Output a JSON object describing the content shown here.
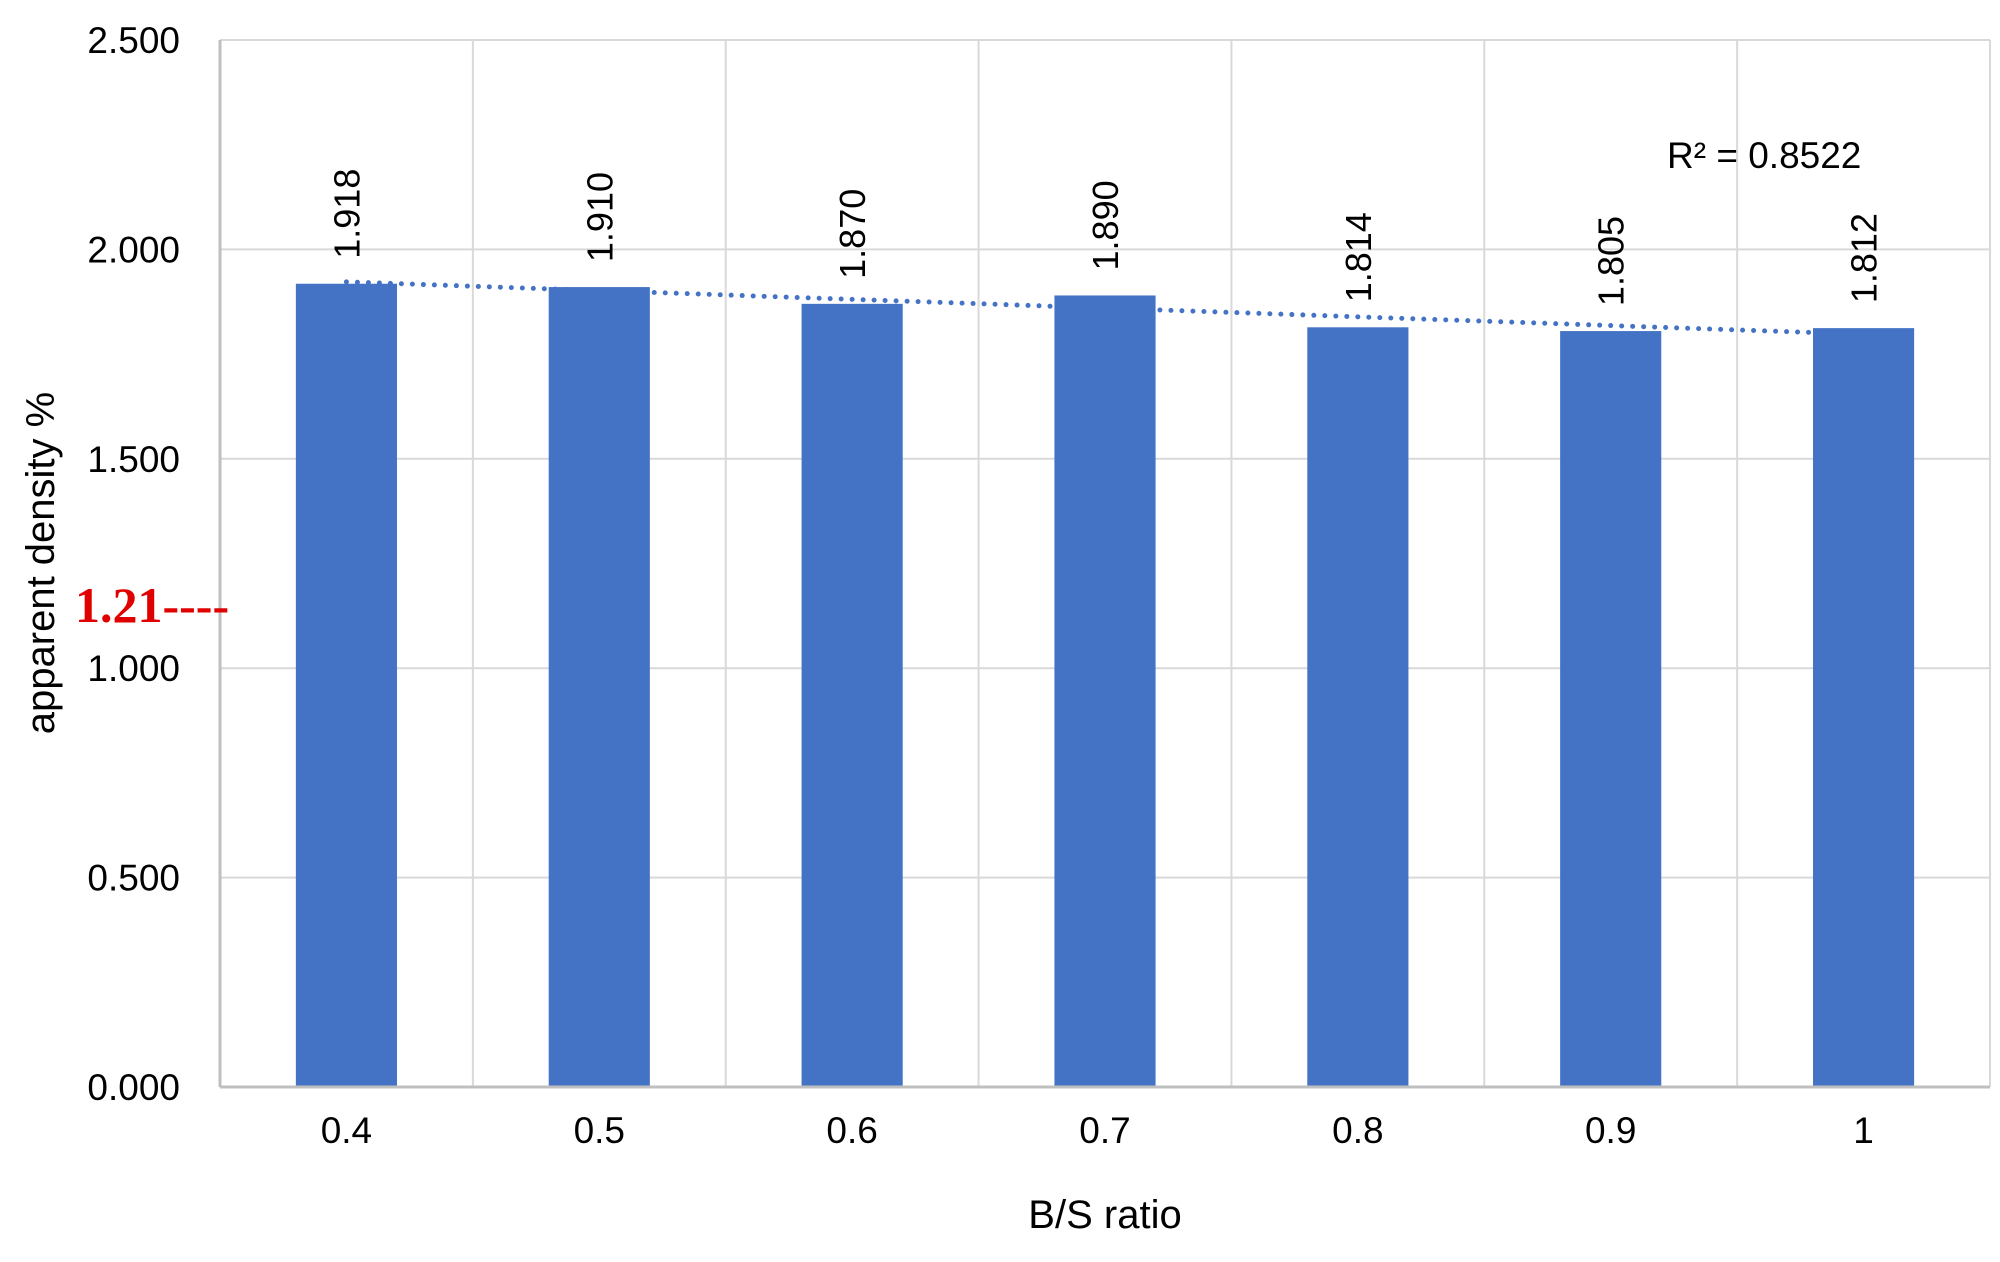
{
  "chart_data": {
    "type": "bar",
    "categories": [
      "0.4",
      "0.5",
      "0.6",
      "0.7",
      "0.8",
      "0.9",
      "1"
    ],
    "values": [
      1.918,
      1.91,
      1.87,
      1.89,
      1.814,
      1.805,
      1.812
    ],
    "data_labels": [
      "1.918",
      "1.910",
      "1.870",
      "1.890",
      "1.814",
      "1.805",
      "1.812"
    ],
    "title": "",
    "xlabel": "B/S ratio",
    "ylabel": "apparent density %",
    "ylim": [
      0,
      2.5
    ],
    "yticks": [
      0,
      0.5,
      1.0,
      1.5,
      2.0,
      2.5
    ],
    "ytick_labels": [
      "0.000",
      "0.500",
      "1.000",
      "1.500",
      "2.000",
      "2.500"
    ],
    "grid": true,
    "legend": "none",
    "trendline": {
      "type": "linear",
      "style": "dotted",
      "r_squared_label": "R² = 0.8522"
    },
    "annotation": {
      "text": "1.21----",
      "value": 1.21
    },
    "colors": {
      "bar": "#4472C4",
      "trendline": "#4472C4",
      "grid": "#D9D9D9",
      "axis": "#BFBFBF",
      "annotation": "#E00000"
    }
  }
}
